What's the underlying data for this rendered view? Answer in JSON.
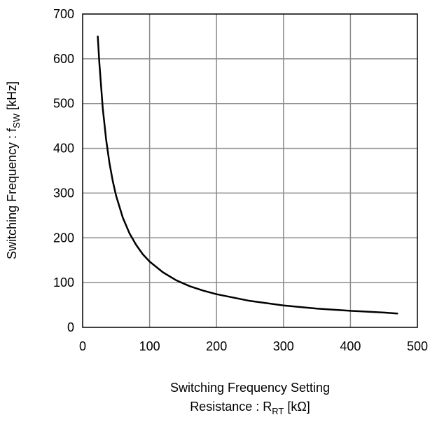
{
  "chart_data": {
    "type": "line",
    "title": "",
    "xlabel": {
      "line1": "Switching Frequency Setting",
      "line2_prefix": "Resistance : R",
      "line2_sub": "RT",
      "line2_suffix": " [kΩ]"
    },
    "ylabel": {
      "prefix": "Switching Frequency : f",
      "sub": "SW",
      "suffix": " [kHz]"
    },
    "xlim": [
      0,
      500
    ],
    "ylim": [
      0,
      700
    ],
    "xticks": [
      0,
      100,
      200,
      300,
      400,
      500
    ],
    "yticks": [
      0,
      100,
      200,
      300,
      400,
      500,
      600,
      700
    ],
    "grid": true,
    "series": [
      {
        "color": "#000000",
        "x": [
          22.6,
          25,
          30,
          35,
          40,
          45,
          50,
          60,
          70,
          80,
          90,
          100,
          120,
          140,
          160,
          180,
          200,
          250,
          300,
          350,
          400,
          450,
          470
        ],
        "y": [
          650,
          590,
          490,
          420,
          368,
          327,
          294,
          245,
          210,
          184,
          163,
          147,
          123,
          105,
          92,
          82,
          74,
          59,
          49,
          42,
          37,
          33,
          31
        ]
      }
    ]
  }
}
